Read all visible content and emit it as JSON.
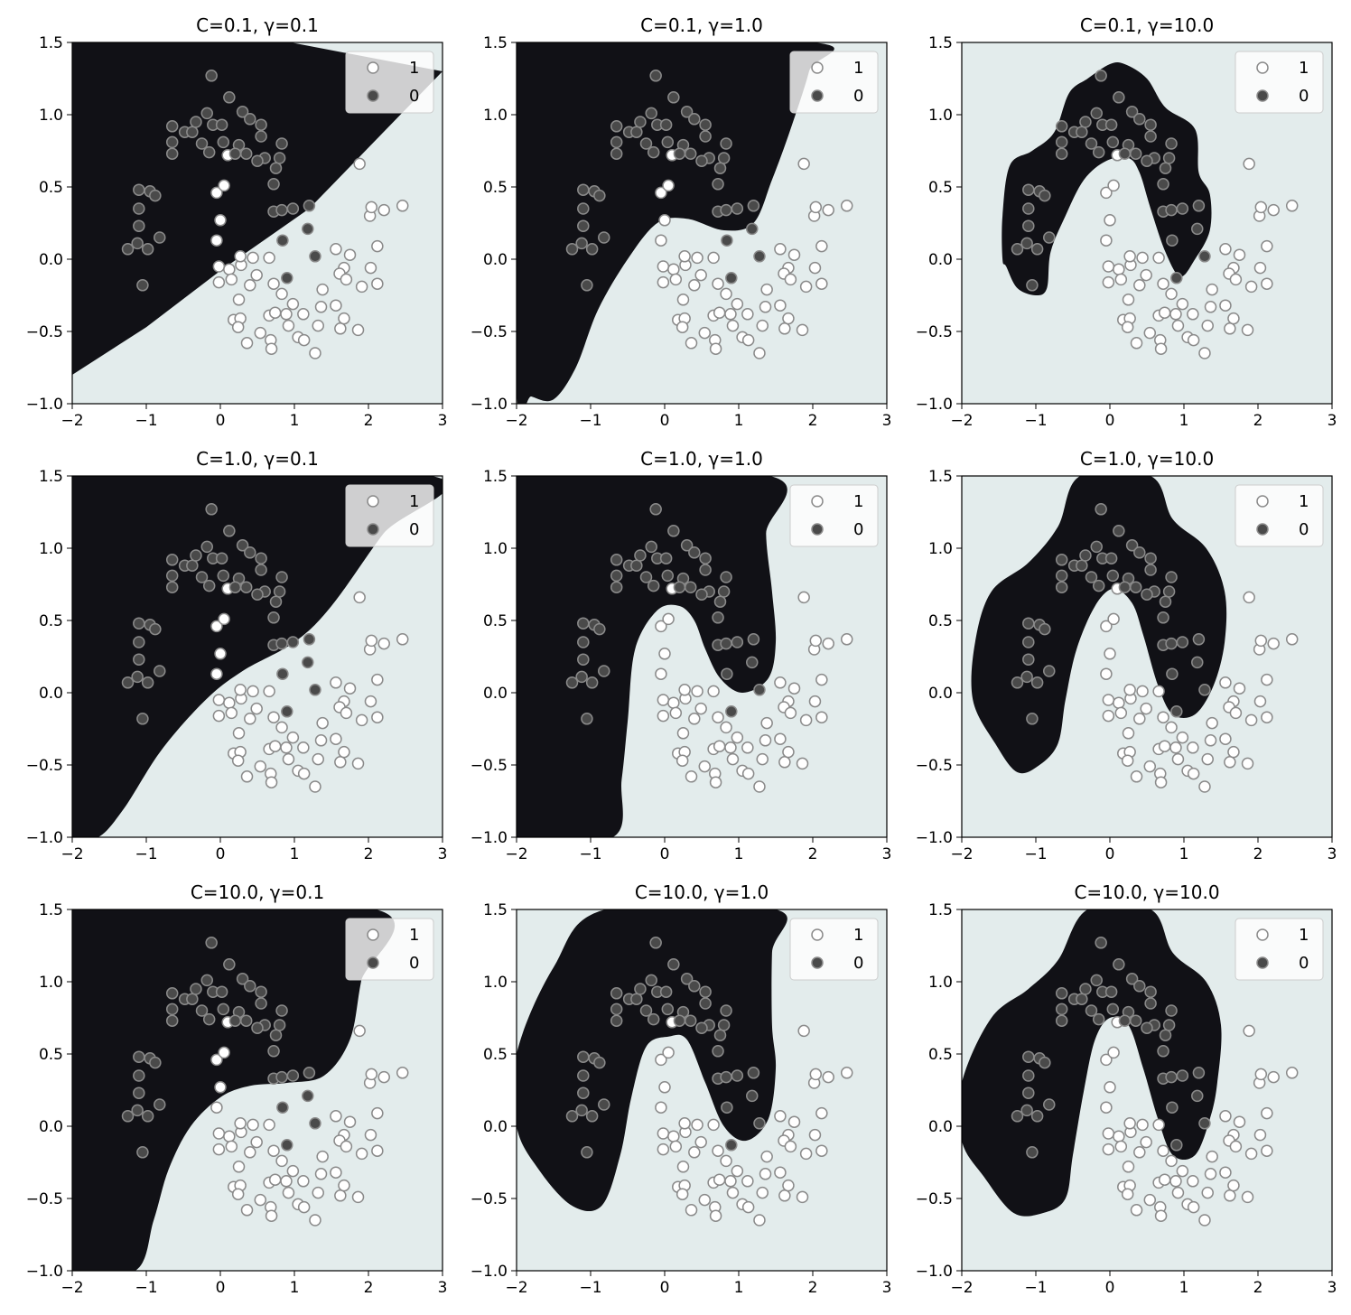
{
  "figure": {
    "grid_rows": 3,
    "grid_cols": 3,
    "region_colors": {
      "class_0": "#111116",
      "class_1": "#e3ecec"
    },
    "point_colors": {
      "class_0_fill": "#4a4a4a",
      "class_1_fill": "#ffffff",
      "edge": "#8a8a8a"
    },
    "legend_labels": [
      "1",
      "0"
    ]
  },
  "chart_data": [
    {
      "type": "scatter",
      "title": "C=0.1, γ=0.1",
      "xlim": [
        -2,
        3
      ],
      "ylim": [
        -1.0,
        1.5
      ],
      "xticks": [
        "−2",
        "−1",
        "0",
        "1",
        "2",
        "3"
      ],
      "yticks": [
        "−1.0",
        "−0.5",
        "0.0",
        "0.5",
        "1.0",
        "1.5"
      ],
      "legend": {
        "placement": "top-right",
        "entries": [
          "1",
          "0"
        ]
      },
      "boundary": "linear",
      "region_class0": [
        [
          -2,
          1.5
        ],
        [
          0.95,
          1.5
        ],
        [
          3,
          1.3
        ],
        [
          1.2,
          0.35
        ],
        [
          0,
          -0.08
        ],
        [
          -1,
          -0.47
        ],
        [
          -2,
          -0.8
        ]
      ]
    },
    {
      "type": "scatter",
      "title": "C=0.1, γ=1.0",
      "xlim": [
        -2,
        3
      ],
      "ylim": [
        -1.0,
        1.5
      ],
      "xticks": [
        "−2",
        "−1",
        "0",
        "1",
        "2",
        "3"
      ],
      "yticks": [
        "−1.0",
        "−0.5",
        "0.0",
        "0.5",
        "1.0",
        "1.5"
      ],
      "legend": {
        "placement": "top-right",
        "entries": [
          "1",
          "0"
        ]
      },
      "boundary": "smooth",
      "region_class0": [
        [
          -2,
          1.5
        ],
        [
          2.0,
          1.5
        ],
        [
          1.95,
          1.3
        ],
        [
          1.7,
          0.9
        ],
        [
          1.45,
          0.55
        ],
        [
          1.2,
          0.25
        ],
        [
          0.8,
          0.2
        ],
        [
          0.3,
          0.28
        ],
        [
          -0.1,
          0.25
        ],
        [
          -0.5,
          0.0
        ],
        [
          -0.9,
          -0.35
        ],
        [
          -1.2,
          -0.75
        ],
        [
          -1.5,
          -0.97
        ],
        [
          -1.8,
          -0.95
        ],
        [
          -2,
          -0.9
        ]
      ]
    },
    {
      "type": "scatter",
      "title": "C=0.1, γ=10.0",
      "xlim": [
        -2,
        3
      ],
      "ylim": [
        -1.0,
        1.5
      ],
      "xticks": [
        "−2",
        "−1",
        "0",
        "1",
        "2",
        "3"
      ],
      "yticks": [
        "−1.0",
        "−0.5",
        "0.0",
        "0.5",
        "1.0",
        "1.5"
      ],
      "legend": {
        "placement": "top-right",
        "entries": [
          "1",
          "0"
        ]
      },
      "boundary": "moon",
      "region_class0": [
        [
          -1.45,
          0.0
        ],
        [
          -1.45,
          0.3
        ],
        [
          -1.35,
          0.65
        ],
        [
          -1.05,
          0.75
        ],
        [
          -0.75,
          0.88
        ],
        [
          -0.55,
          1.15
        ],
        [
          -0.3,
          1.25
        ],
        [
          0.0,
          1.35
        ],
        [
          0.2,
          1.35
        ],
        [
          0.5,
          1.25
        ],
        [
          0.75,
          1.05
        ],
        [
          1.15,
          0.9
        ],
        [
          1.2,
          0.6
        ],
        [
          1.35,
          0.45
        ],
        [
          1.35,
          0.2
        ],
        [
          1.15,
          0.0
        ],
        [
          0.95,
          -0.12
        ],
        [
          0.75,
          0.05
        ],
        [
          0.55,
          0.35
        ],
        [
          0.4,
          0.6
        ],
        [
          0.25,
          0.7
        ],
        [
          -0.05,
          0.68
        ],
        [
          -0.35,
          0.55
        ],
        [
          -0.6,
          0.3
        ],
        [
          -0.8,
          0.05
        ],
        [
          -0.85,
          -0.2
        ],
        [
          -1.0,
          -0.25
        ],
        [
          -1.25,
          -0.2
        ],
        [
          -1.4,
          -0.05
        ]
      ]
    },
    {
      "type": "scatter",
      "title": "C=1.0, γ=0.1",
      "xlim": [
        -2,
        3
      ],
      "ylim": [
        -1.0,
        1.5
      ],
      "xticks": [
        "−2",
        "−1",
        "0",
        "1",
        "2",
        "3"
      ],
      "yticks": [
        "−1.0",
        "−0.5",
        "0.0",
        "0.5",
        "1.0",
        "1.5"
      ],
      "legend": {
        "placement": "top-right",
        "entries": [
          "1",
          "0"
        ]
      },
      "boundary": "curved",
      "region_class0": [
        [
          -2,
          1.5
        ],
        [
          2.85,
          1.5
        ],
        [
          2.2,
          1.1
        ],
        [
          1.5,
          0.6
        ],
        [
          1.0,
          0.35
        ],
        [
          0.3,
          0.15
        ],
        [
          -0.2,
          -0.05
        ],
        [
          -0.8,
          -0.4
        ],
        [
          -1.3,
          -0.8
        ],
        [
          -1.65,
          -1.0
        ],
        [
          -2,
          -1.0
        ]
      ]
    },
    {
      "type": "scatter",
      "title": "C=1.0, γ=1.0",
      "xlim": [
        -2,
        3
      ],
      "ylim": [
        -1.0,
        1.5
      ],
      "xticks": [
        "−2",
        "−1",
        "0",
        "1",
        "2",
        "3"
      ],
      "yticks": [
        "−1.0",
        "−0.5",
        "0.0",
        "0.5",
        "1.0",
        "1.5"
      ],
      "legend": {
        "placement": "top-right",
        "entries": [
          "1",
          "0"
        ]
      },
      "boundary": "smooth",
      "region_class0": [
        [
          -2,
          1.5
        ],
        [
          1.42,
          1.5
        ],
        [
          1.37,
          1.1
        ],
        [
          1.45,
          0.7
        ],
        [
          1.5,
          0.35
        ],
        [
          1.4,
          0.1
        ],
        [
          1.05,
          0.0
        ],
        [
          0.75,
          0.1
        ],
        [
          0.55,
          0.3
        ],
        [
          0.4,
          0.5
        ],
        [
          0.2,
          0.6
        ],
        [
          -0.1,
          0.57
        ],
        [
          -0.4,
          0.3
        ],
        [
          -0.5,
          -0.2
        ],
        [
          -0.58,
          -0.6
        ],
        [
          -0.7,
          -1.0
        ],
        [
          -2,
          -1.0
        ]
      ]
    },
    {
      "type": "scatter",
      "title": "C=1.0, γ=10.0",
      "xlim": [
        -2,
        3
      ],
      "ylim": [
        -1.0,
        1.5
      ],
      "xticks": [
        "−2",
        "−1",
        "0",
        "1",
        "2",
        "3"
      ],
      "yticks": [
        "−1.0",
        "−0.5",
        "0.0",
        "0.5",
        "1.0",
        "1.5"
      ],
      "legend": {
        "placement": "top-right",
        "entries": [
          "1",
          "0"
        ]
      },
      "boundary": "moon",
      "region_class0": [
        [
          -1.85,
          -0.05
        ],
        [
          -1.82,
          0.35
        ],
        [
          -1.6,
          0.7
        ],
        [
          -1.1,
          0.9
        ],
        [
          -0.7,
          1.15
        ],
        [
          -0.4,
          1.5
        ],
        [
          0.55,
          1.5
        ],
        [
          0.85,
          1.2
        ],
        [
          1.3,
          1.0
        ],
        [
          1.55,
          0.7
        ],
        [
          1.55,
          0.35
        ],
        [
          1.4,
          0.05
        ],
        [
          1.15,
          -0.15
        ],
        [
          0.85,
          -0.15
        ],
        [
          0.65,
          0.05
        ],
        [
          0.45,
          0.4
        ],
        [
          0.3,
          0.62
        ],
        [
          0.05,
          0.72
        ],
        [
          -0.2,
          0.6
        ],
        [
          -0.45,
          0.3
        ],
        [
          -0.6,
          -0.05
        ],
        [
          -0.7,
          -0.35
        ],
        [
          -0.95,
          -0.5
        ],
        [
          -1.25,
          -0.55
        ],
        [
          -1.55,
          -0.35
        ]
      ]
    },
    {
      "type": "scatter",
      "title": "C=10.0, γ=0.1",
      "xlim": [
        -2,
        3
      ],
      "ylim": [
        -1.0,
        1.5
      ],
      "xticks": [
        "−2",
        "−1",
        "0",
        "1",
        "2",
        "3"
      ],
      "yticks": [
        "−1.0",
        "−0.5",
        "0.0",
        "0.5",
        "1.0",
        "1.5"
      ],
      "legend": {
        "placement": "top-right",
        "entries": [
          "1",
          "0"
        ]
      },
      "boundary": "curved",
      "region_class0": [
        [
          -2,
          1.5
        ],
        [
          2.1,
          1.5
        ],
        [
          1.9,
          1.0
        ],
        [
          1.75,
          0.6
        ],
        [
          1.4,
          0.35
        ],
        [
          0.9,
          0.3
        ],
        [
          0.4,
          0.28
        ],
        [
          0.0,
          0.2
        ],
        [
          -0.4,
          0.0
        ],
        [
          -0.7,
          -0.3
        ],
        [
          -0.9,
          -0.65
        ],
        [
          -1.15,
          -1.0
        ],
        [
          -2,
          -1.0
        ]
      ]
    },
    {
      "type": "scatter",
      "title": "C=10.0, γ=1.0",
      "xlim": [
        -2,
        3
      ],
      "ylim": [
        -1.0,
        1.5
      ],
      "xticks": [
        "−2",
        "−1",
        "0",
        "1",
        "2",
        "3"
      ],
      "yticks": [
        "−1.0",
        "−0.5",
        "0.0",
        "0.5",
        "1.0",
        "1.5"
      ],
      "legend": {
        "placement": "top-right",
        "entries": [
          "1",
          "0"
        ]
      },
      "boundary": "smooth",
      "region_class0": [
        [
          -2,
          0.5
        ],
        [
          -1.5,
          1.1
        ],
        [
          -0.8,
          1.5
        ],
        [
          1.5,
          1.5
        ],
        [
          1.45,
          1.2
        ],
        [
          1.45,
          0.7
        ],
        [
          1.5,
          0.4
        ],
        [
          1.4,
          0.05
        ],
        [
          1.1,
          -0.1
        ],
        [
          0.8,
          0.0
        ],
        [
          0.55,
          0.3
        ],
        [
          0.3,
          0.6
        ],
        [
          0.05,
          0.62
        ],
        [
          -0.25,
          0.55
        ],
        [
          -0.45,
          0.2
        ],
        [
          -0.6,
          -0.2
        ],
        [
          -0.85,
          -0.55
        ],
        [
          -1.25,
          -0.55
        ],
        [
          -1.7,
          -0.3
        ],
        [
          -2,
          0.0
        ]
      ]
    },
    {
      "type": "scatter",
      "title": "C=10.0, γ=10.0",
      "xlim": [
        -2,
        3
      ],
      "ylim": [
        -1.0,
        1.5
      ],
      "xticks": [
        "−2",
        "−1",
        "0",
        "1",
        "2",
        "3"
      ],
      "yticks": [
        "−1.0",
        "−0.5",
        "0.0",
        "0.5",
        "1.0",
        "1.5"
      ],
      "legend": {
        "placement": "top-right",
        "entries": [
          "1",
          "0"
        ]
      },
      "boundary": "moon",
      "region_class0": [
        [
          -2,
          -0.1
        ],
        [
          -2,
          0.3
        ],
        [
          -1.6,
          0.75
        ],
        [
          -1.1,
          0.95
        ],
        [
          -0.7,
          1.15
        ],
        [
          -0.3,
          1.5
        ],
        [
          0.55,
          1.5
        ],
        [
          0.85,
          1.2
        ],
        [
          1.3,
          1.0
        ],
        [
          1.5,
          0.7
        ],
        [
          1.45,
          0.3
        ],
        [
          1.35,
          0.05
        ],
        [
          1.15,
          -0.2
        ],
        [
          0.85,
          -0.2
        ],
        [
          0.65,
          0.05
        ],
        [
          0.45,
          0.4
        ],
        [
          0.25,
          0.7
        ],
        [
          0.0,
          0.75
        ],
        [
          -0.2,
          0.6
        ],
        [
          -0.35,
          0.25
        ],
        [
          -0.5,
          -0.2
        ],
        [
          -0.6,
          -0.5
        ],
        [
          -0.9,
          -0.6
        ],
        [
          -1.3,
          -0.6
        ],
        [
          -1.7,
          -0.35
        ]
      ]
    }
  ],
  "points_class1": [
    [
      0.1,
      0.72
    ],
    [
      -0.05,
      0.46
    ],
    [
      0.05,
      0.51
    ],
    [
      0.0,
      0.27
    ],
    [
      -0.05,
      0.13
    ],
    [
      -0.02,
      -0.05
    ],
    [
      0.12,
      -0.07
    ],
    [
      0.28,
      -0.04
    ],
    [
      0.44,
      0.01
    ],
    [
      0.66,
      0.01
    ],
    [
      0.27,
      0.02
    ],
    [
      -0.02,
      -0.16
    ],
    [
      0.15,
      -0.14
    ],
    [
      0.25,
      -0.28
    ],
    [
      0.4,
      -0.18
    ],
    [
      0.49,
      -0.11
    ],
    [
      0.72,
      -0.17
    ],
    [
      0.83,
      -0.24
    ],
    [
      0.98,
      -0.31
    ],
    [
      0.92,
      -0.46
    ],
    [
      1.12,
      -0.38
    ],
    [
      1.05,
      -0.54
    ],
    [
      1.32,
      -0.46
    ],
    [
      1.28,
      -0.65
    ],
    [
      1.13,
      -0.56
    ],
    [
      1.36,
      -0.33
    ],
    [
      1.38,
      -0.21
    ],
    [
      1.62,
      -0.48
    ],
    [
      1.67,
      -0.41
    ],
    [
      1.56,
      -0.32
    ],
    [
      1.86,
      -0.49
    ],
    [
      1.91,
      -0.19
    ],
    [
      2.12,
      -0.17
    ],
    [
      2.03,
      -0.06
    ],
    [
      2.12,
      0.09
    ],
    [
      1.56,
      0.07
    ],
    [
      1.67,
      -0.06
    ],
    [
      1.61,
      -0.1
    ],
    [
      1.7,
      -0.14
    ],
    [
      1.75,
      0.03
    ],
    [
      2.02,
      0.3
    ],
    [
      2.04,
      0.36
    ],
    [
      2.21,
      0.34
    ],
    [
      2.46,
      0.37
    ],
    [
      1.88,
      0.66
    ],
    [
      0.68,
      -0.56
    ],
    [
      0.69,
      -0.62
    ],
    [
      0.66,
      -0.39
    ],
    [
      0.74,
      -0.37
    ],
    [
      0.89,
      -0.38
    ],
    [
      0.18,
      -0.42
    ],
    [
      0.27,
      -0.41
    ],
    [
      0.24,
      -0.47
    ],
    [
      0.36,
      -0.58
    ],
    [
      0.54,
      -0.51
    ]
  ],
  "points_class0": [
    [
      -1.25,
      0.07
    ],
    [
      -1.12,
      0.11
    ],
    [
      -0.98,
      0.07
    ],
    [
      -1.05,
      -0.18
    ],
    [
      -0.82,
      0.15
    ],
    [
      -1.1,
      0.23
    ],
    [
      -1.1,
      0.35
    ],
    [
      -1.1,
      0.48
    ],
    [
      -0.95,
      0.47
    ],
    [
      -0.88,
      0.44
    ],
    [
      -0.65,
      0.92
    ],
    [
      -0.65,
      0.81
    ],
    [
      -0.65,
      0.73
    ],
    [
      -0.48,
      0.88
    ],
    [
      -0.38,
      0.88
    ],
    [
      -0.33,
      0.95
    ],
    [
      -0.18,
      1.01
    ],
    [
      -0.1,
      0.93
    ],
    [
      -0.25,
      0.8
    ],
    [
      -0.15,
      0.74
    ],
    [
      -0.12,
      1.27
    ],
    [
      0.12,
      1.12
    ],
    [
      0.02,
      0.93
    ],
    [
      0.04,
      0.81
    ],
    [
      0.25,
      0.79
    ],
    [
      0.3,
      1.02
    ],
    [
      0.4,
      0.97
    ],
    [
      0.55,
      0.93
    ],
    [
      0.55,
      0.85
    ],
    [
      0.6,
      0.7
    ],
    [
      0.5,
      0.68
    ],
    [
      0.35,
      0.73
    ],
    [
      0.83,
      0.8
    ],
    [
      0.8,
      0.7
    ],
    [
      0.75,
      0.63
    ],
    [
      0.72,
      0.52
    ],
    [
      0.72,
      0.33
    ],
    [
      0.83,
      0.34
    ],
    [
      0.98,
      0.35
    ],
    [
      1.2,
      0.37
    ],
    [
      1.18,
      0.21
    ],
    [
      0.84,
      0.13
    ],
    [
      0.9,
      -0.13
    ],
    [
      1.28,
      0.02
    ],
    [
      0.2,
      0.73
    ]
  ]
}
